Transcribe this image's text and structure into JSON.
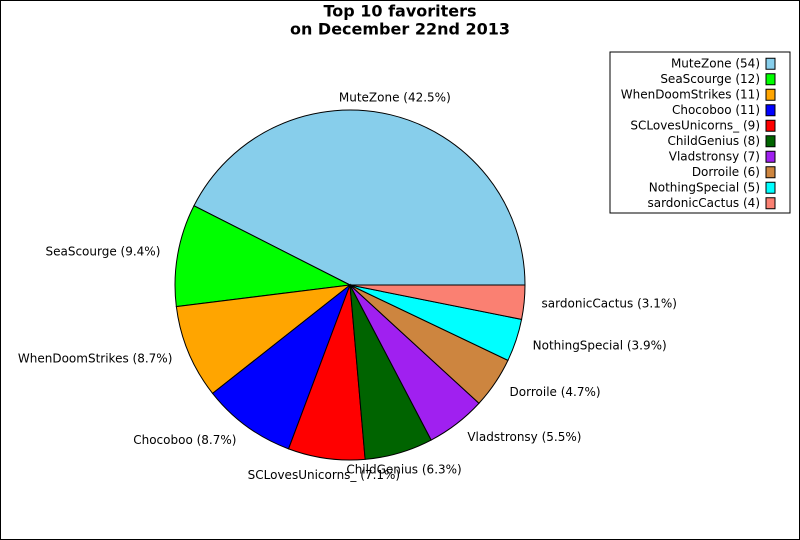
{
  "chart_data": {
    "type": "pie",
    "title": [
      "Top 10 favoriters",
      "on December 22nd 2013"
    ],
    "labels": [
      "MuteZone (54)",
      "SeaScourge (12)",
      "WhenDoomStrikes (11)",
      "Chocoboo (11)",
      "SCLovesUnicorns_ (9)",
      "ChildGenius (8)",
      "Vladstronsy (7)",
      "Dorroile (6)",
      "NothingSpecial (5)",
      "sardonicCactus (4)"
    ],
    "values": [
      54,
      12,
      11,
      11,
      9,
      8,
      7,
      6,
      5,
      4
    ],
    "slice_labels": [
      "MuteZone (42.5%)",
      "SeaScourge (9.4%)",
      "WhenDoomStrikes (8.7%)",
      "Chocoboo (8.7%)",
      "SCLovesUnicorns_ (7.1%)",
      "ChildGenius (6.3%)",
      "Vladstronsy (5.5%)",
      "Dorroile (4.7%)",
      "NothingSpecial (3.9%)",
      "sardonicCactus (3.1%)"
    ],
    "colors": [
      "#87ceeb",
      "#00ff00",
      "#ffa500",
      "#0000ff",
      "#ff0000",
      "#006400",
      "#a020f0",
      "#cd853f",
      "#00ffff",
      "#fa8072"
    ],
    "legend": "upper right"
  }
}
